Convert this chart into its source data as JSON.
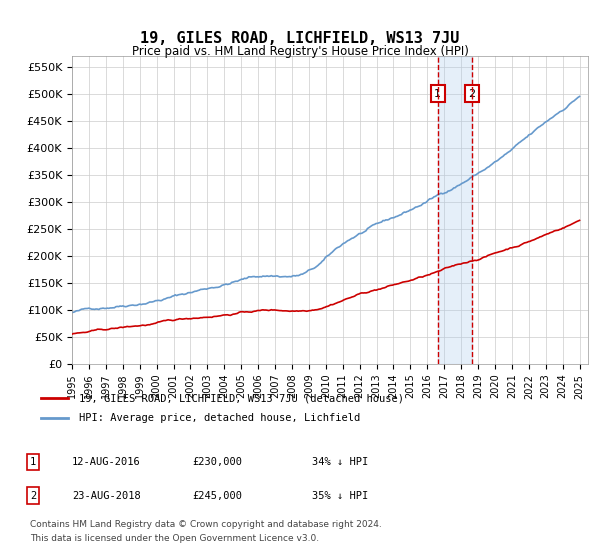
{
  "title": "19, GILES ROAD, LICHFIELD, WS13 7JU",
  "subtitle": "Price paid vs. HM Land Registry's House Price Index (HPI)",
  "ylabel_ticks": [
    "£0",
    "£50K",
    "£100K",
    "£150K",
    "£200K",
    "£250K",
    "£300K",
    "£350K",
    "£400K",
    "£450K",
    "£500K",
    "£550K"
  ],
  "ylim": [
    0,
    570000
  ],
  "xlim_start": 1995.0,
  "xlim_end": 2025.5,
  "legend_line1": "19, GILES ROAD, LICHFIELD, WS13 7JU (detached house)",
  "legend_line2": "HPI: Average price, detached house, Lichfield",
  "transactions": [
    {
      "num": 1,
      "date": "12-AUG-2016",
      "price": "£230,000",
      "hpi": "34% ↓ HPI",
      "year": 2016.62,
      "value": 230000
    },
    {
      "num": 2,
      "date": "23-AUG-2018",
      "price": "£245,000",
      "hpi": "35% ↓ HPI",
      "year": 2018.65,
      "value": 245000
    }
  ],
  "footnote1": "Contains HM Land Registry data © Crown copyright and database right 2024.",
  "footnote2": "This data is licensed under the Open Government Licence v3.0.",
  "red_color": "#cc0000",
  "blue_color": "#6699cc",
  "marker_box_color": "#cc0000",
  "shading_color": "#aaccee",
  "background_color": "#ffffff",
  "grid_color": "#cccccc"
}
